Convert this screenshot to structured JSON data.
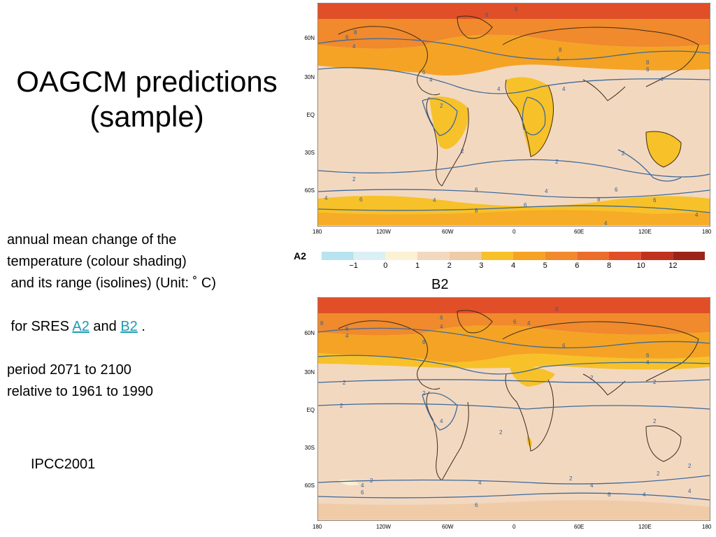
{
  "slide": {
    "title_line1": "OAGCM predictions",
    "title_line2": "(sample)",
    "desc_line1": "annual mean change of the",
    "desc_line2": "temperature (colour shading)",
    "desc_line3": " and its range (isolines) (Unit: ˚ C)",
    "desc_for": " for SRES ",
    "desc_a2": "A2",
    "desc_and": " and ",
    "desc_b2": "B2",
    "desc_end": " .",
    "period_line1": "period 2071 to 2100",
    "period_line2": "relative to 1961 to 1990",
    "credit": "IPCC2001"
  },
  "maps": {
    "lat_labels": [
      "60N",
      "30N",
      "EQ",
      "30S",
      "60S"
    ],
    "lon_labels": [
      "180",
      "120W",
      "60W",
      "0",
      "60E",
      "120E",
      "180"
    ],
    "a2_label": "A2",
    "b2_label": "B2"
  },
  "legend": {
    "ticks": [
      "−1",
      "0",
      "1",
      "2",
      "3",
      "4",
      "5",
      "6",
      "8",
      "10",
      "12"
    ],
    "colors": [
      "#b9e3ee",
      "#daf0f4",
      "#fbf1d4",
      "#f3d8c0",
      "#f0cba8",
      "#f7c12a",
      "#f5a325",
      "#f08a2d",
      "#eb6d2c",
      "#e04f27",
      "#c0321f",
      "#9a2418"
    ]
  },
  "chart_data": {
    "type": "heatmap",
    "title": "",
    "scale_values": [
      -1,
      0,
      1,
      2,
      3,
      4,
      5,
      6,
      8,
      10,
      12
    ],
    "unit": "˚ C",
    "isoline_labels_a2": [
      "2",
      "4",
      "6",
      "8"
    ],
    "isoline_labels_b2": [
      "2",
      "4",
      "6",
      "8"
    ]
  }
}
